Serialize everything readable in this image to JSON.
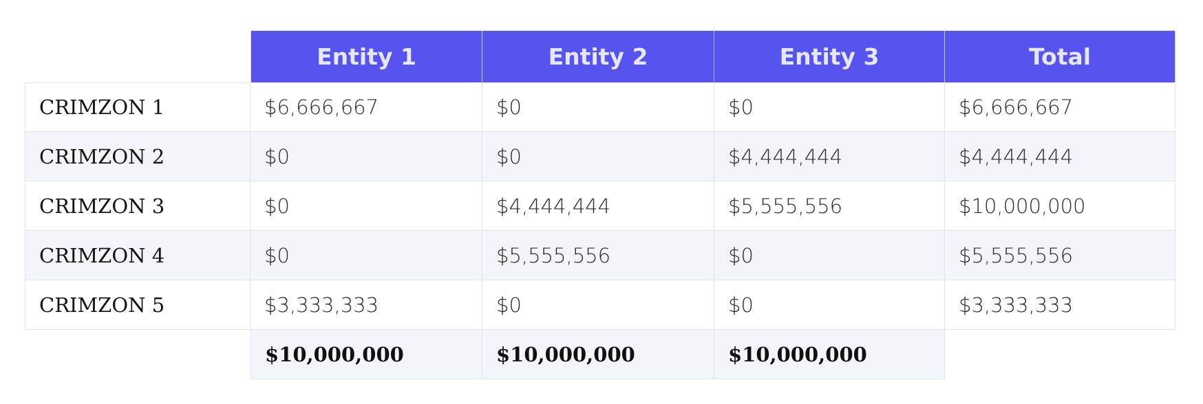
{
  "table": {
    "headers": [
      "Entity 1",
      "Entity 2",
      "Entity 3",
      "Total"
    ],
    "rows": [
      {
        "label": "CRIMZON 1",
        "values": [
          "$6,666,667",
          "$0",
          "$0",
          "$6,666,667"
        ]
      },
      {
        "label": "CRIMZON 2",
        "values": [
          "$0",
          "$0",
          "$4,444,444",
          "$4,444,444"
        ]
      },
      {
        "label": "CRIMZON 3",
        "values": [
          "$0",
          "$4,444,444",
          "$5,555,556",
          "$10,000,000"
        ]
      },
      {
        "label": "CRIMZON 4",
        "values": [
          "$0",
          "$5,555,556",
          "$0",
          "$5,555,556"
        ]
      },
      {
        "label": "CRIMZON 5",
        "values": [
          "$3,333,333",
          "$0",
          "$0",
          "$3,333,333"
        ]
      }
    ],
    "totals": [
      "$10,000,000",
      "$10,000,000",
      "$10,000,000"
    ]
  },
  "colors": {
    "header_bg": "#5653ef",
    "header_text": "#e5e6ff",
    "alt_row_bg": "#f4f5fa",
    "border": "#dfe2ef"
  }
}
